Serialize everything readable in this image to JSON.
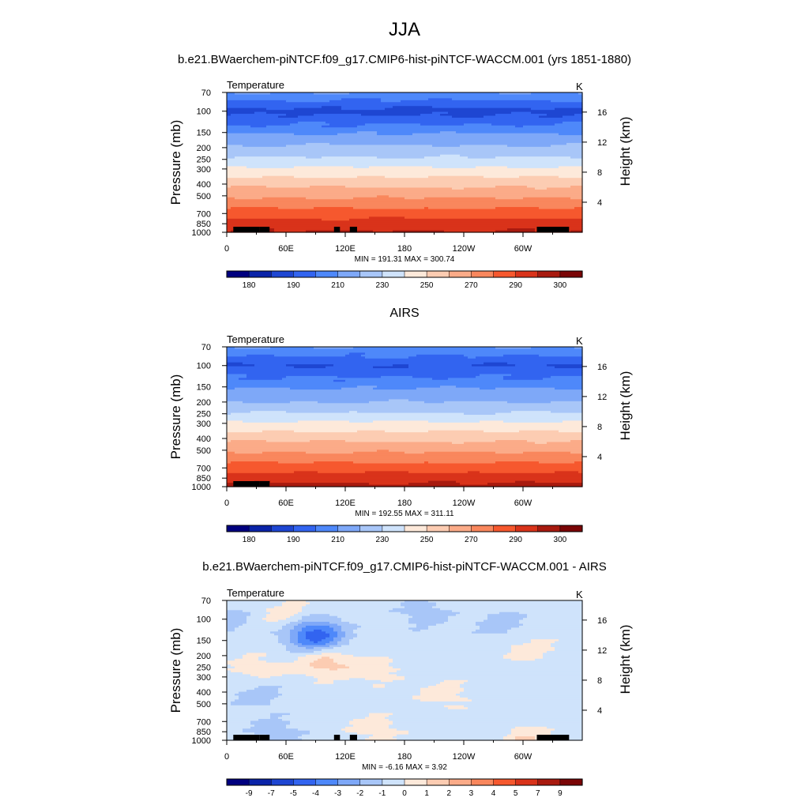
{
  "figure": {
    "title": "JJA",
    "panel_titles": [
      "b.e21.BWaerchem-piNTCF.f09_g17.CMIP6-hist-piNTCF-WACCM.001 (yrs 1851-1880)",
      "AIRS",
      "b.e21.BWaerchem-piNTCF.f09_g17.CMIP6-hist-piNTCF-WACCM.001 - AIRS"
    ]
  },
  "chart_data": [
    {
      "type": "heatmap",
      "panel_title": "b.e21.BWaerchem-piNTCF.f09_g17.CMIP6-hist-piNTCF-WACCM.001 (yrs 1851-1880)",
      "left_label": "Temperature",
      "right_label": "K",
      "ylabel": "Pressure (mb)",
      "y2label": "Height (km)",
      "xlabel": "",
      "x_ticks": [
        "0",
        "60E",
        "120E",
        "180",
        "120W",
        "60W"
      ],
      "y_ticks": [
        "70",
        "100",
        "150",
        "200",
        "250",
        "300",
        "400",
        "500",
        "700",
        "850",
        "1000"
      ],
      "y2_ticks": [
        "16",
        "12",
        "8",
        "4"
      ],
      "ylim": [
        1000,
        70
      ],
      "stats": "MIN = 191.31  MAX = 300.74",
      "levels_mb": [
        70,
        100,
        150,
        200,
        250,
        300,
        400,
        500,
        700,
        850,
        1000
      ],
      "level_values": [
        200,
        188,
        199,
        212,
        222,
        232,
        247,
        258,
        275,
        285,
        291
      ],
      "colorbar_ticks": [
        "180",
        "190",
        "210",
        "230",
        "250",
        "270",
        "290",
        "300"
      ],
      "colorbar_colors": [
        "#00007f",
        "#0a23a8",
        "#1e46d2",
        "#3264f0",
        "#4e88fa",
        "#7ea8f8",
        "#a8c6f8",
        "#cfe3fb",
        "#fde9da",
        "#fcccb2",
        "#fbab88",
        "#f9875d",
        "#f6582e",
        "#d9331a",
        "#a81a0f",
        "#7a0506"
      ]
    },
    {
      "type": "heatmap",
      "panel_title": "AIRS",
      "left_label": "Temperature",
      "right_label": "K",
      "ylabel": "Pressure (mb)",
      "y2label": "Height (km)",
      "xlabel": "",
      "x_ticks": [
        "0",
        "60E",
        "120E",
        "180",
        "120W",
        "60W"
      ],
      "y_ticks": [
        "70",
        "100",
        "150",
        "200",
        "250",
        "300",
        "400",
        "500",
        "700",
        "850",
        "1000"
      ],
      "y2_ticks": [
        "16",
        "12",
        "8",
        "4"
      ],
      "ylim": [
        1000,
        70
      ],
      "stats": "MIN = 192.55  MAX = 311.11",
      "levels_mb": [
        70,
        100,
        150,
        200,
        250,
        300,
        400,
        500,
        700,
        850,
        1000
      ],
      "level_values": [
        200,
        190,
        199,
        210,
        221,
        232,
        247,
        258,
        275,
        286,
        293
      ],
      "colorbar_ticks": [
        "180",
        "190",
        "210",
        "230",
        "250",
        "270",
        "290",
        "300"
      ],
      "colorbar_colors": [
        "#00007f",
        "#0a23a8",
        "#1e46d2",
        "#3264f0",
        "#4e88fa",
        "#7ea8f8",
        "#a8c6f8",
        "#cfe3fb",
        "#fde9da",
        "#fcccb2",
        "#fbab88",
        "#f9875d",
        "#f6582e",
        "#d9331a",
        "#a81a0f",
        "#7a0506"
      ]
    },
    {
      "type": "heatmap",
      "panel_title": "b.e21.BWaerchem-piNTCF.f09_g17.CMIP6-hist-piNTCF-WACCM.001 - AIRS",
      "left_label": "Temperature",
      "right_label": "K",
      "ylabel": "Pressure (mb)",
      "y2label": "Height (km)",
      "xlabel": "",
      "x_ticks": [
        "0",
        "60E",
        "120E",
        "180",
        "120W",
        "60W"
      ],
      "y_ticks": [
        "70",
        "100",
        "150",
        "200",
        "250",
        "300",
        "400",
        "500",
        "700",
        "850",
        "1000"
      ],
      "y2_ticks": [
        "16",
        "12",
        "8",
        "4"
      ],
      "ylim": [
        1000,
        70
      ],
      "stats": "MIN =  -6.16  MAX =   3.92",
      "base_value": -0.5,
      "anomalies": [
        {
          "lon": 0,
          "p": 100,
          "value": -1.5
        },
        {
          "lon": 90,
          "p": 120,
          "value": -1.5
        },
        {
          "lon": 200,
          "p": 90,
          "value": -1.5
        },
        {
          "lon": 280,
          "p": 110,
          "value": -1.5
        },
        {
          "lon": 60,
          "p": 90,
          "value": 0.5
        },
        {
          "lon": 90,
          "p": 140,
          "value": -4
        },
        {
          "lon": 150,
          "p": 260,
          "value": 0.5
        },
        {
          "lon": 30,
          "p": 260,
          "value": 0.5
        },
        {
          "lon": 305,
          "p": 180,
          "value": 0.5
        },
        {
          "lon": 100,
          "p": 230,
          "value": 1.5
        },
        {
          "lon": 30,
          "p": 420,
          "value": -1.5
        },
        {
          "lon": 220,
          "p": 420,
          "value": 0.5
        },
        {
          "lon": 150,
          "p": 800,
          "value": 0.5
        },
        {
          "lon": 50,
          "p": 850,
          "value": -1.5
        },
        {
          "lon": 275,
          "p": 900,
          "value": -1.5
        },
        {
          "lon": 295,
          "p": 970,
          "value": 1.5
        }
      ],
      "colorbar_ticks": [
        "-9",
        "-7",
        "-5",
        "-4",
        "-3",
        "-2",
        "-1",
        "0",
        "1",
        "2",
        "3",
        "4",
        "5",
        "7",
        "9"
      ],
      "colorbar_colors": [
        "#00007f",
        "#0a23a8",
        "#1e46d2",
        "#3264f0",
        "#4e88fa",
        "#7ea8f8",
        "#a8c6f8",
        "#cfe3fb",
        "#fde9da",
        "#fcccb2",
        "#fbab88",
        "#f9875d",
        "#f6582e",
        "#d9331a",
        "#a81a0f",
        "#7a0506"
      ]
    }
  ]
}
